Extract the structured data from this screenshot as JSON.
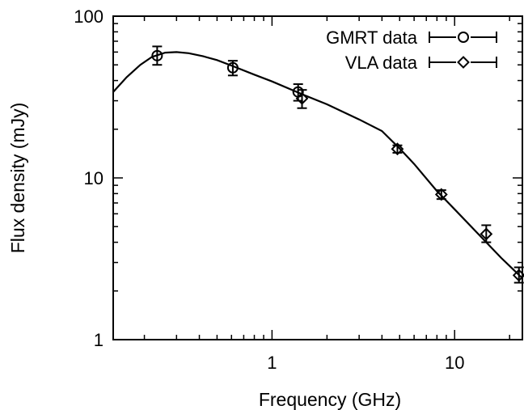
{
  "chart_data": {
    "type": "scatter",
    "xlabel": "Frequency (GHz)",
    "ylabel": "Flux density (mJy)",
    "x_scale": "log",
    "y_scale": "log",
    "xlim": [
      0.135,
      23.5
    ],
    "ylim": [
      1,
      100
    ],
    "x_tick_labels": [
      {
        "value": 1,
        "label": "1"
      },
      {
        "value": 10,
        "label": "10"
      }
    ],
    "y_tick_labels": [
      {
        "value": 1,
        "label": "1"
      },
      {
        "value": 10,
        "label": "10"
      },
      {
        "value": 100,
        "label": "100"
      }
    ],
    "grid": false,
    "legend_position": "top-right",
    "series": [
      {
        "name": "GMRT data",
        "marker": "circle",
        "points": [
          {
            "x": 0.235,
            "y": 57,
            "err_low": 7,
            "err_high": 8
          },
          {
            "x": 0.61,
            "y": 48,
            "err_low": 5,
            "err_high": 5
          },
          {
            "x": 1.39,
            "y": 34,
            "err_low": 4,
            "err_high": 4
          }
        ]
      },
      {
        "name": "VLA data",
        "marker": "diamond",
        "points": [
          {
            "x": 1.46,
            "y": 31,
            "err_low": 4,
            "err_high": 4
          },
          {
            "x": 4.86,
            "y": 15.1,
            "err_low": 0.8,
            "err_high": 0.8
          },
          {
            "x": 8.46,
            "y": 7.9,
            "err_low": 0.5,
            "err_high": 0.5
          },
          {
            "x": 14.9,
            "y": 4.5,
            "err_low": 0.5,
            "err_high": 0.6
          },
          {
            "x": 22.5,
            "y": 2.5,
            "err_low": 0.25,
            "err_high": 0.3
          }
        ]
      }
    ],
    "model_curve": {
      "points": [
        [
          0.135,
          34
        ],
        [
          0.16,
          42
        ],
        [
          0.19,
          50
        ],
        [
          0.22,
          56
        ],
        [
          0.26,
          59.5
        ],
        [
          0.3,
          60
        ],
        [
          0.35,
          59
        ],
        [
          0.42,
          56.5
        ],
        [
          0.5,
          53.5
        ],
        [
          0.6,
          49.5
        ],
        [
          0.8,
          43.5
        ],
        [
          1.0,
          39.5
        ],
        [
          1.5,
          32.5
        ],
        [
          2.0,
          28.5
        ],
        [
          3.0,
          23
        ],
        [
          4.0,
          19.5
        ],
        [
          5.0,
          15.2
        ],
        [
          6.0,
          12.2
        ],
        [
          8.0,
          8.3
        ],
        [
          10.0,
          6.4
        ],
        [
          14.0,
          4.3
        ],
        [
          18.0,
          3.2
        ],
        [
          23.5,
          2.4
        ]
      ]
    }
  }
}
